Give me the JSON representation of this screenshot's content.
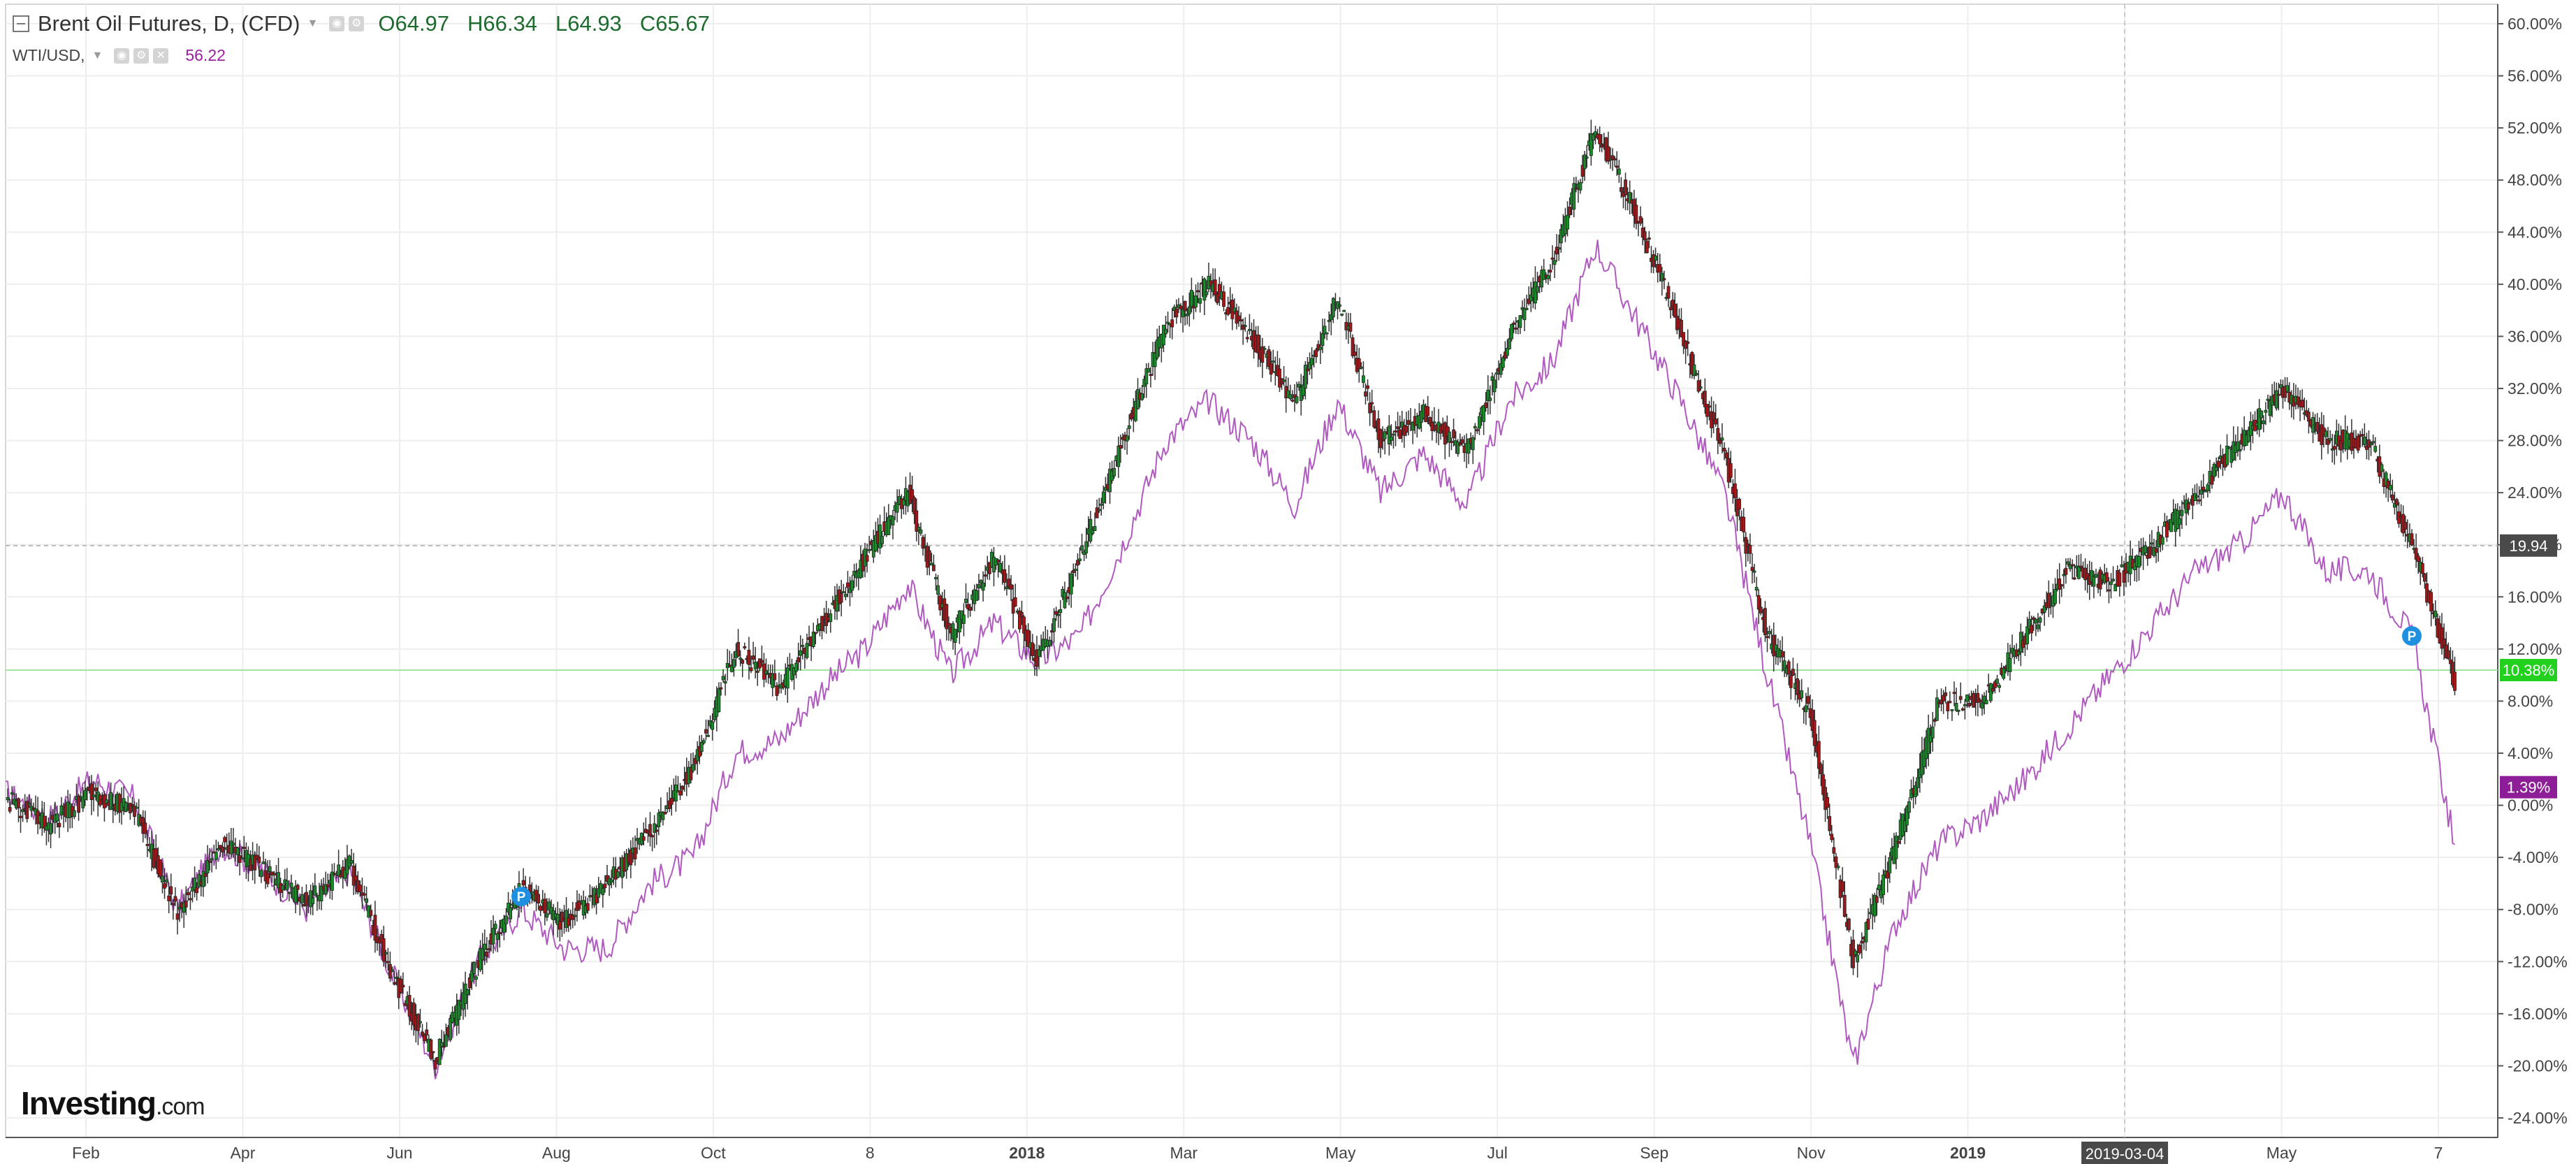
{
  "header": {
    "title": "Brent Oil Futures, D, (CFD)",
    "open": "O64.97",
    "high": "H66.34",
    "low": "L64.93",
    "close": "C65.67",
    "compare_symbol": "WTI/USD,",
    "compare_value": "56.22"
  },
  "logo": {
    "main": "Investing",
    "suffix": ".com"
  },
  "colors": {
    "up": "#1b8a2a",
    "down": "#a3171a",
    "wti_line": "#b05ac0",
    "grid": "#eeeeee",
    "last_price_tag": "#22d01e",
    "wti_tag": "#8e1e97",
    "crosshair_tag": "#4a4a4a"
  },
  "chart_data": {
    "type": "line",
    "xlabel": "",
    "ylabel": "",
    "x_tick_labels": [
      "Feb",
      "Apr",
      "Jun",
      "Aug",
      "Oct",
      "8",
      "2018",
      "Mar",
      "May",
      "Jul",
      "Sep",
      "Nov",
      "2019",
      "2019-03-04",
      "May",
      "7"
    ],
    "bold_ticks": [
      "2018",
      "2019"
    ],
    "y_axis_unit": "%",
    "y_tick_labels": [
      "60.00%",
      "56.00%",
      "52.00%",
      "48.00%",
      "44.00%",
      "40.00%",
      "36.00%",
      "32.00%",
      "28.00%",
      "24.00%",
      "20.00%",
      "16.00%",
      "12.00%",
      "8.00%",
      "4.00%",
      "0.00%",
      "-4.00%",
      "-8.00%",
      "-12.00%",
      "-16.00%",
      "-20.00%",
      "-24.00%"
    ],
    "ylim": [
      -25.5,
      61.5
    ],
    "x_range": [
      0,
      29
    ],
    "series": [
      {
        "name": "Brent Oil Futures, D, (CFD)",
        "kind": "candlestick",
        "x": [
          0,
          0.5,
          1,
          1.5,
          2,
          2.5,
          3,
          3.5,
          4,
          4.5,
          5,
          5.5,
          6,
          6.5,
          7,
          7.5,
          8,
          8.5,
          9,
          9.5,
          10,
          10.5,
          11,
          11.5,
          12,
          12.5,
          13,
          13.5,
          14,
          14.5,
          15,
          15.5,
          16,
          16.5,
          17,
          17.5,
          18,
          18.5,
          19,
          19.5,
          20,
          20.5,
          21,
          21.5,
          22,
          22.5,
          23,
          23.5,
          24,
          24.5,
          25,
          25.5,
          26,
          26.5,
          27,
          27.5,
          28,
          28.5
        ],
        "values": [
          0.5,
          -1.5,
          1.0,
          -0.5,
          -8.5,
          -3.0,
          -5.0,
          -7.5,
          -4.5,
          -13.0,
          -19.5,
          -12.0,
          -6.5,
          -9.0,
          -6.0,
          -2.0,
          3.0,
          12.0,
          9.0,
          14.0,
          19.0,
          24.0,
          13.0,
          19.0,
          11.0,
          19.0,
          28.0,
          37.0,
          40.0,
          36.0,
          31.0,
          39.0,
          28.0,
          30.0,
          27.0,
          36.0,
          42.0,
          52.0,
          45.0,
          36.0,
          27.0,
          13.0,
          7.0,
          -12.0,
          -3.0,
          8.0,
          8.0,
          13.0,
          18.0,
          17.0,
          20.0,
          24.0,
          28.0,
          32.0,
          28.0,
          28.0,
          20.0,
          9.5
        ]
      },
      {
        "name": "WTI/USD",
        "kind": "line",
        "x": [
          0,
          0.5,
          1,
          1.5,
          2,
          2.5,
          3,
          3.5,
          4,
          4.5,
          5,
          5.5,
          6,
          6.5,
          7,
          7.5,
          8,
          8.5,
          9,
          9.5,
          10,
          10.5,
          11,
          11.5,
          12,
          12.5,
          13,
          13.5,
          14,
          14.5,
          15,
          15.5,
          16,
          16.5,
          17,
          17.5,
          18,
          18.5,
          19,
          19.5,
          20,
          20.5,
          21,
          21.5,
          22,
          22.5,
          23,
          23.5,
          24,
          24.5,
          25,
          25.5,
          26,
          26.5,
          27,
          27.5,
          28,
          28.5
        ],
        "values": [
          1.0,
          -1.0,
          2.0,
          0.5,
          -8.0,
          -3.0,
          -5.0,
          -8.0,
          -5.0,
          -13.0,
          -20.0,
          -12.0,
          -8.0,
          -11.0,
          -11.0,
          -6.0,
          -4.0,
          4.0,
          5.0,
          9.0,
          12.0,
          17.0,
          10.0,
          14.0,
          11.0,
          13.0,
          20.0,
          28.0,
          31.0,
          28.0,
          23.0,
          31.0,
          24.0,
          27.0,
          23.0,
          31.0,
          34.0,
          43.0,
          37.0,
          31.0,
          24.0,
          10.0,
          -3.0,
          -20.0,
          -9.0,
          -3.0,
          -1.0,
          2.0,
          6.0,
          10.0,
          14.0,
          18.0,
          20.0,
          24.0,
          18.0,
          18.0,
          13.0,
          -3.0
        ]
      }
    ],
    "last_value_tags": [
      {
        "label": "10.38%",
        "value": 10.38
      },
      {
        "label": "1.39%",
        "value": 1.39
      },
      {
        "label": "19.94",
        "value": 19.94
      }
    ],
    "crosshair": {
      "x_label": "2019-03-04"
    },
    "markers": [
      {
        "label": "P"
      },
      {
        "label": "P"
      }
    ]
  }
}
